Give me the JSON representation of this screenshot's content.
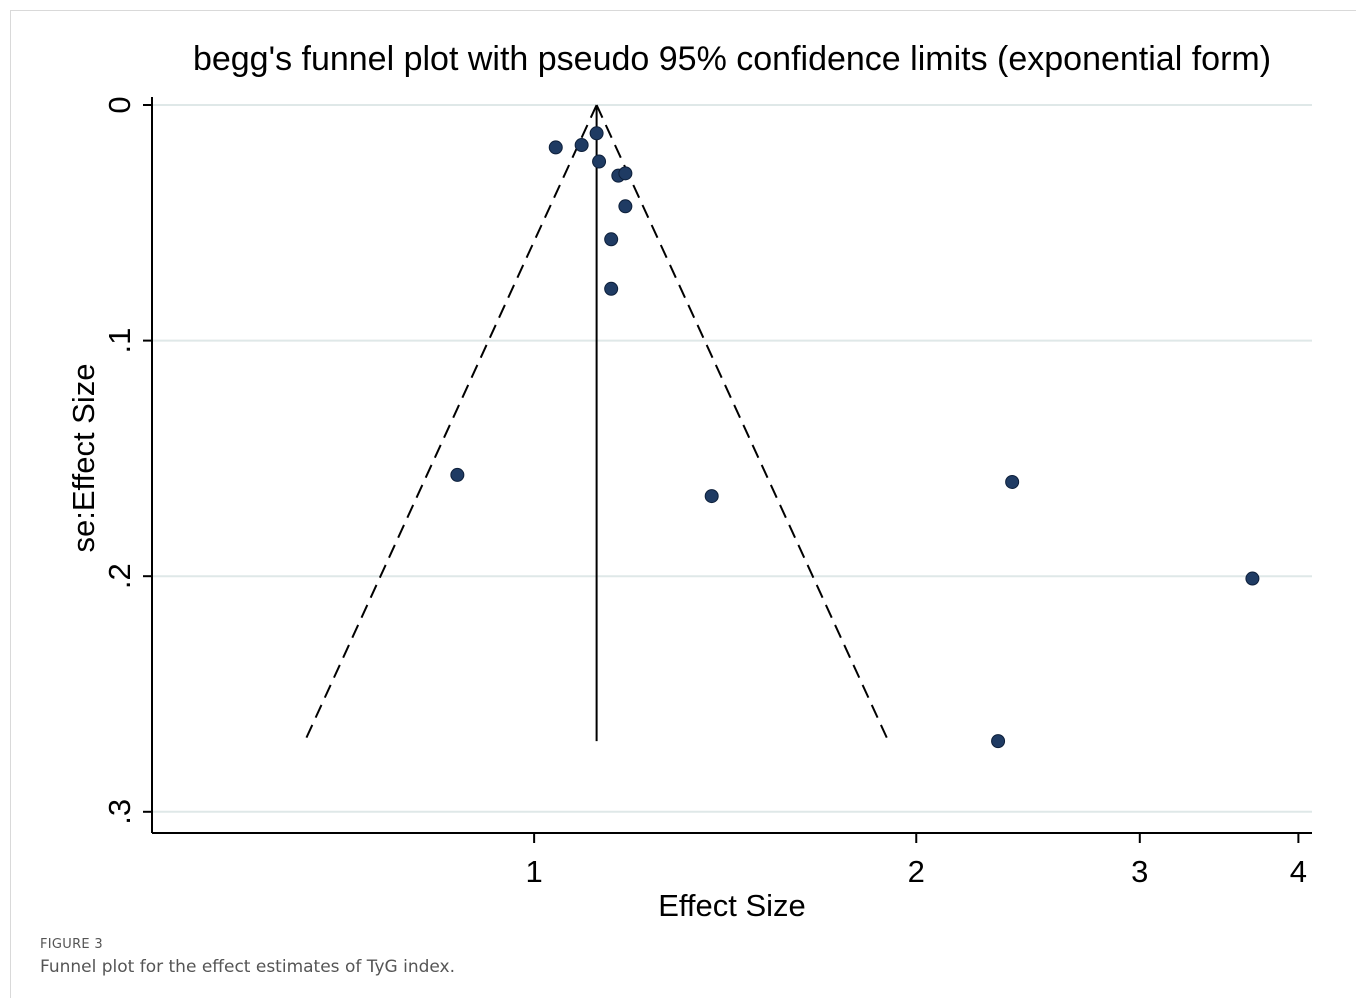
{
  "chart_data": {
    "type": "scatter",
    "title": "begg's funnel plot with pseudo 95% confidence limits (exponential form)",
    "xlabel": "Effect Size",
    "ylabel": "se:Effect Size",
    "x_scale": "log",
    "y_reversed": true,
    "xlim": [
      0.5,
      4.1
    ],
    "ylim": [
      0,
      0.309
    ],
    "x_ticks": [
      {
        "value": 1,
        "label": "1"
      },
      {
        "value": 2,
        "label": "2"
      },
      {
        "value": 3,
        "label": "3"
      },
      {
        "value": 4,
        "label": "4"
      }
    ],
    "y_ticks": [
      {
        "value": 0,
        "label": "0"
      },
      {
        "value": 0.1,
        "label": ".1"
      },
      {
        "value": 0.2,
        "label": ".2"
      },
      {
        "value": 0.3,
        "label": ".3"
      }
    ],
    "grid": true,
    "pooled_effect": 1.12,
    "funnel_se_max": 0.27,
    "points": [
      {
        "x": 1.12,
        "y": 0.012
      },
      {
        "x": 1.04,
        "y": 0.018
      },
      {
        "x": 1.09,
        "y": 0.017
      },
      {
        "x": 1.125,
        "y": 0.024
      },
      {
        "x": 1.165,
        "y": 0.03
      },
      {
        "x": 1.18,
        "y": 0.029
      },
      {
        "x": 1.18,
        "y": 0.043
      },
      {
        "x": 1.15,
        "y": 0.057
      },
      {
        "x": 1.15,
        "y": 0.078
      },
      {
        "x": 0.87,
        "y": 0.157
      },
      {
        "x": 1.38,
        "y": 0.166
      },
      {
        "x": 2.38,
        "y": 0.16
      },
      {
        "x": 3.68,
        "y": 0.201
      },
      {
        "x": 2.32,
        "y": 0.27
      }
    ],
    "point_color": "#1f3b63"
  },
  "figure": {
    "label": "FIGURE 3",
    "caption": "Funnel plot for the effect estimates of TyG index."
  }
}
